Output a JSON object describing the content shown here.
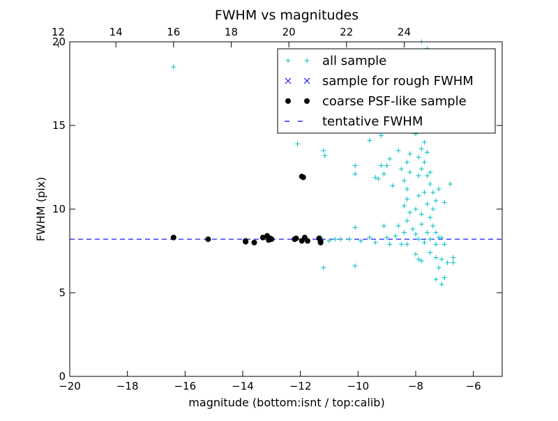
{
  "chart_data": {
    "type": "scatter",
    "title": "FWHM vs magnitudes",
    "xlabel": "magnitude (bottom:isnt / top:calib)",
    "ylabel": "FWHM (pix)",
    "xlim": [
      -20,
      -5
    ],
    "ylim": [
      0,
      20
    ],
    "xticks": [
      -20,
      -18,
      -16,
      -14,
      -12,
      -10,
      -8,
      -6
    ],
    "yticks": [
      0,
      5,
      10,
      15,
      20
    ],
    "top_axis": {
      "offset": 32.4,
      "ticks": [
        12,
        14,
        16,
        18,
        20,
        22,
        24
      ]
    },
    "tentative_fwhm": 8.2,
    "legend_position": "top-right",
    "colors": {
      "all": "#00bfbf",
      "rough": "#0000ff",
      "coarse": "#000000",
      "tentative": "#0000ff"
    },
    "series": [
      {
        "name": "all sample",
        "marker": "plus",
        "points": [
          [
            -16.4,
            18.5
          ],
          [
            -12.1,
            13.9
          ],
          [
            -11.2,
            13.5
          ],
          [
            -11.15,
            13.2
          ],
          [
            -11.2,
            6.5
          ],
          [
            -10.1,
            6.6
          ],
          [
            -10.1,
            12.6
          ],
          [
            -10.1,
            12.1
          ],
          [
            -9.6,
            14.1
          ],
          [
            -9.2,
            14.4
          ],
          [
            -9.2,
            12.6
          ],
          [
            -9.4,
            11.9
          ],
          [
            -9.3,
            11.8
          ],
          [
            -9.0,
            12.6
          ],
          [
            -9.1,
            12.1
          ],
          [
            -8.9,
            13.0
          ],
          [
            -8.8,
            11.4
          ],
          [
            -8.6,
            13.5
          ],
          [
            -8.5,
            12.4
          ],
          [
            -8.3,
            12.8
          ],
          [
            -8.2,
            13.3
          ],
          [
            -8.2,
            12.2
          ],
          [
            -8.4,
            11.7
          ],
          [
            -8.3,
            11.2
          ],
          [
            -8.3,
            10.6
          ],
          [
            -8.4,
            10.2
          ],
          [
            -8.2,
            9.8
          ],
          [
            -8.3,
            9.3
          ],
          [
            -8.1,
            8.8
          ],
          [
            -8.4,
            8.6
          ],
          [
            -8.6,
            9.0
          ],
          [
            -8.7,
            8.4
          ],
          [
            -8.5,
            7.9
          ],
          [
            -8.3,
            7.9
          ],
          [
            -8.0,
            7.3
          ],
          [
            -7.9,
            7.0
          ],
          [
            -7.8,
            6.9
          ],
          [
            -8.0,
            14.5
          ],
          [
            -7.9,
            14.9
          ],
          [
            -7.9,
            13.1
          ],
          [
            -7.8,
            13.6
          ],
          [
            -7.7,
            12.8
          ],
          [
            -7.6,
            12.0
          ],
          [
            -7.5,
            11.5
          ],
          [
            -7.4,
            11.0
          ],
          [
            -7.3,
            10.5
          ],
          [
            -7.4,
            10.0
          ],
          [
            -7.5,
            9.5
          ],
          [
            -7.4,
            9.0
          ],
          [
            -7.3,
            8.6
          ],
          [
            -7.2,
            8.3
          ],
          [
            -7.3,
            7.9
          ],
          [
            -7.5,
            7.4
          ],
          [
            -7.3,
            7.1
          ],
          [
            -7.2,
            6.5
          ],
          [
            -7.3,
            5.8
          ],
          [
            -7.1,
            5.5
          ],
          [
            -7.0,
            5.9
          ],
          [
            -7.1,
            7.0
          ],
          [
            -7.0,
            7.9
          ],
          [
            -7.1,
            8.3
          ],
          [
            -7.0,
            10.4
          ],
          [
            -7.2,
            11.2
          ],
          [
            -6.8,
            11.5
          ],
          [
            -6.7,
            7.1
          ],
          [
            -6.7,
            6.8
          ],
          [
            -6.9,
            6.8
          ],
          [
            -7.8,
            9.1
          ],
          [
            -7.7,
            8.0
          ],
          [
            -7.6,
            8.6
          ],
          [
            -7.5,
            8.2
          ],
          [
            -7.6,
            10.3
          ],
          [
            -7.7,
            11.0
          ],
          [
            -7.9,
            10.8
          ],
          [
            -8.0,
            10.0
          ],
          [
            -7.8,
            9.7
          ],
          [
            -8.0,
            8.5
          ],
          [
            -7.9,
            8.2
          ],
          [
            -7.9,
            12.0
          ],
          [
            -7.8,
            12.4
          ],
          [
            -7.5,
            12.2
          ],
          [
            -7.6,
            13.4
          ],
          [
            -7.7,
            14.0
          ],
          [
            -7.6,
            19.6
          ],
          [
            -7.8,
            20.0
          ],
          [
            -8.4,
            19.4
          ],
          [
            -8.9,
            19.1
          ],
          [
            -9.0,
            16.3
          ],
          [
            -7.9,
            15.2
          ],
          [
            -7.6,
            14.7
          ],
          [
            -9.6,
            8.3
          ],
          [
            -9.9,
            8.1
          ],
          [
            -10.3,
            8.2
          ],
          [
            -10.6,
            8.2
          ],
          [
            -10.1,
            8.9
          ],
          [
            -9.1,
            9.0
          ],
          [
            -9.4,
            8.0
          ],
          [
            -8.9,
            7.9
          ],
          [
            -9.0,
            8.3
          ],
          [
            -10.8,
            8.2
          ],
          [
            -11.0,
            8.1
          ],
          [
            -11.3,
            8.3
          ]
        ]
      },
      {
        "name": "sample for rough FWHM",
        "marker": "x",
        "points": []
      },
      {
        "name": "coarse PSF-like sample",
        "marker": "dot",
        "points": [
          [
            -16.4,
            8.3
          ],
          [
            -15.2,
            8.2
          ],
          [
            -13.9,
            8.1
          ],
          [
            -13.9,
            8.05
          ],
          [
            -13.6,
            8.0
          ],
          [
            -13.3,
            8.3
          ],
          [
            -13.15,
            8.4
          ],
          [
            -13.1,
            8.15
          ],
          [
            -13.05,
            8.25
          ],
          [
            -13.0,
            8.2
          ],
          [
            -12.2,
            8.2
          ],
          [
            -12.15,
            8.25
          ],
          [
            -11.95,
            11.95
          ],
          [
            -11.9,
            11.9
          ],
          [
            -11.95,
            8.1
          ],
          [
            -11.85,
            8.3
          ],
          [
            -11.75,
            8.1
          ],
          [
            -11.35,
            8.25
          ],
          [
            -11.3,
            8.0
          ],
          [
            -11.3,
            8.1
          ]
        ]
      },
      {
        "name": "tentative FWHM",
        "marker": "dash",
        "points": []
      }
    ]
  }
}
